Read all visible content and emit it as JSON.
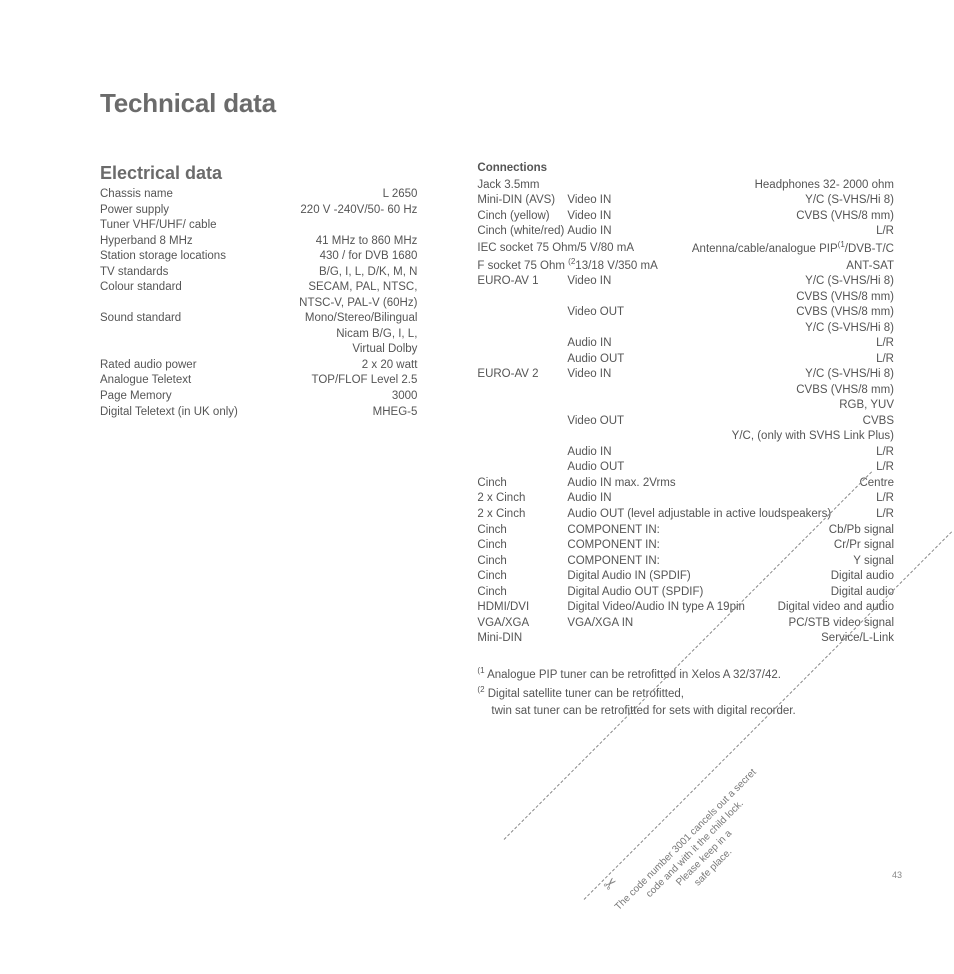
{
  "title": "Technical data",
  "left": {
    "heading": "Electrical data",
    "rows": [
      {
        "l": "Chassis name",
        "r": "L 2650"
      },
      {
        "l": "Power supply",
        "r": "220 V -240V/50- 60 Hz"
      },
      {
        "l": "Tuner VHF/UHF/ cable",
        "r": ""
      },
      {
        "l": "Hyperband 8 MHz",
        "r": "41 MHz to 860 MHz"
      },
      {
        "l": "Station storage locations",
        "r": "430 / for DVB 1680"
      },
      {
        "l": "TV standards",
        "r": "B/G, I, L, D/K, M, N"
      },
      {
        "l": "Colour standard",
        "r": "SECAM, PAL, NTSC,"
      },
      {
        "l": "",
        "r": "NTSC-V, PAL-V (60Hz)"
      },
      {
        "l": "Sound standard",
        "r": "Mono/Stereo/Bilingual"
      },
      {
        "l": "",
        "r": "Nicam B/G, I, L,"
      },
      {
        "l": "",
        "r": "Virtual Dolby"
      },
      {
        "l": "Rated audio power",
        "r": "2 x 20 watt"
      },
      {
        "l": "Analogue Teletext",
        "r": "TOP/FLOF Level 2.5"
      },
      {
        "l": "Page Memory",
        "r": "3000"
      },
      {
        "l": "Digital Teletext (in UK only)",
        "r": "MHEG-5"
      }
    ]
  },
  "right": {
    "heading": "Connections",
    "rows": [
      {
        "c1": "Jack 3.5mm",
        "c2": "",
        "c3": "Headphones 32- 2000 ohm"
      },
      {
        "c1": "Mini-DIN (AVS)",
        "c2": "Video IN",
        "c3": "Y/C (S-VHS/Hi 8)"
      },
      {
        "c1": "Cinch (yellow)",
        "c2": "Video IN",
        "c3": "CVBS (VHS/8 mm)"
      },
      {
        "c1": "Cinch (white/red)",
        "c2": "Audio IN",
        "c3": "L/R"
      },
      {
        "c1": "IEC socket 75 Ohm/5 V/80 mA",
        "c2": "",
        "c3": "Antenna/cable/analogue PIP<sup>(1</sup>/DVB-T/C"
      },
      {
        "c1": "F socket 75 Ohm <sup>(2</sup>13/18 V/350 mA",
        "c2": "",
        "c3": "ANT-SAT"
      },
      {
        "c1": "EURO-AV 1",
        "c2": "Video IN",
        "c3": "Y/C (S-VHS/Hi 8)"
      },
      {
        "c1": "",
        "c2": "",
        "c3": "CVBS (VHS/8 mm)"
      },
      {
        "c1": "",
        "c2": "Video OUT",
        "c3": "CVBS (VHS/8 mm)"
      },
      {
        "c1": "",
        "c2": "",
        "c3": "Y/C (S-VHS/Hi 8)"
      },
      {
        "c1": "",
        "c2": "Audio IN",
        "c3": "L/R"
      },
      {
        "c1": "",
        "c2": "Audio OUT",
        "c3": "L/R"
      },
      {
        "c1": "EURO-AV 2",
        "c2": "Video IN",
        "c3": "Y/C (S-VHS/Hi 8)"
      },
      {
        "c1": "",
        "c2": "",
        "c3": "CVBS (VHS/8 mm)"
      },
      {
        "c1": "",
        "c2": "",
        "c3": "RGB, YUV"
      },
      {
        "c1": "",
        "c2": "Video OUT",
        "c3": "CVBS"
      },
      {
        "c1": "",
        "c2": "",
        "c3": "Y/C, (only with SVHS Link Plus)"
      },
      {
        "c1": "",
        "c2": "Audio IN",
        "c3": "L/R"
      },
      {
        "c1": "",
        "c2": "Audio OUT",
        "c3": "L/R"
      },
      {
        "c1": "Cinch",
        "c2": "Audio IN max. 2Vrms",
        "c3": "Centre"
      },
      {
        "c1": "2 x Cinch",
        "c2": "Audio IN",
        "c3": "L/R"
      },
      {
        "c1": "2 x Cinch",
        "c2": "Audio OUT (level adjustable in active loudspeakers)",
        "c3": "L/R"
      },
      {
        "c1": "Cinch",
        "c2": "COMPONENT IN:",
        "c3": "Cb/Pb signal"
      },
      {
        "c1": "Cinch",
        "c2": "COMPONENT IN:",
        "c3": "Cr/Pr signal"
      },
      {
        "c1": "Cinch",
        "c2": "COMPONENT IN:",
        "c3": "Y signal"
      },
      {
        "c1": "Cinch",
        "c2": "Digital Audio IN (SPDIF)",
        "c3": "Digital audio"
      },
      {
        "c1": "Cinch",
        "c2": "Digital Audio OUT (SPDIF)",
        "c3": "Digital audio"
      },
      {
        "c1": "HDMI/DVI",
        "c2": "Digital Video/Audio IN type A 19pin",
        "c3": "Digital video and audio"
      },
      {
        "c1": "VGA/XGA",
        "c2": "VGA/XGA IN",
        "c3": "PC/STB video signal"
      },
      {
        "c1": "Mini-DIN",
        "c2": "",
        "c3": "Service/L-Link"
      }
    ],
    "footnotes": [
      "<sup>(1</sup> Analogue PIP tuner can be retrofitted in Xelos A 32/37/42.",
      "<sup>(2</sup> Digital satellite tuner can be retrofitted,",
      "twin sat tuner can be retrofitted for sets with digital recorder."
    ]
  },
  "cut": {
    "line1": "The code number 3001 cancels out a secret",
    "line2": "code and with it the child lock.",
    "line3": "Please keep in a",
    "line4": "safe place."
  },
  "page_number": "43"
}
